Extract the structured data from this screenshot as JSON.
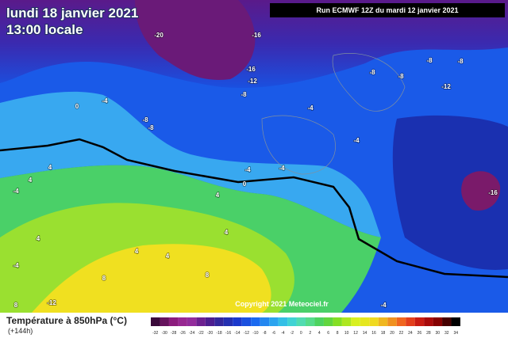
{
  "header": {
    "date": "lundi 18 janvier 2021",
    "time": "13:00 locale",
    "run": "Run ECMWF 12Z du mardi 12 janvier 2021"
  },
  "copyright": "Copyright 2021 Meteociel.fr",
  "legend": {
    "title": "Température à 850hPa (°C)",
    "lead": "(+144h)",
    "scale": [
      -32,
      -30,
      -28,
      -26,
      -24,
      -22,
      -20,
      -18,
      -16,
      -14,
      -12,
      -10,
      -8,
      -6,
      -4,
      -2,
      0,
      2,
      4,
      6,
      8,
      10,
      12,
      14,
      16,
      18,
      20,
      22,
      24,
      26,
      28,
      30,
      32,
      34
    ]
  },
  "map_labels": [
    "-20",
    "-16",
    "-16",
    "-12",
    "-8",
    "-8",
    "-8",
    "-8",
    "-8",
    "-12",
    "-4",
    "0",
    "-4",
    "-8",
    "-8",
    "-4",
    "-4",
    "0",
    "-4",
    "4",
    "-4",
    "4",
    "-16",
    "4",
    "4",
    "4",
    "4",
    "4",
    "-4",
    "8",
    "8",
    "-12",
    "8",
    "-4"
  ]
}
